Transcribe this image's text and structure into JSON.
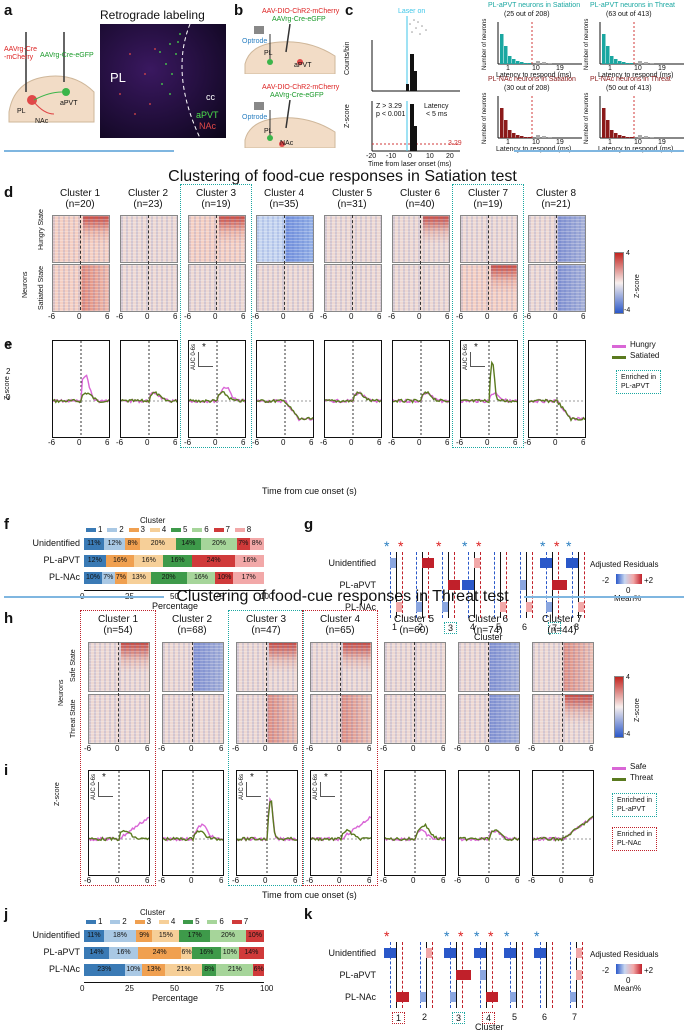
{
  "panels": {
    "a": "a",
    "b": "b",
    "c": "c",
    "d": "d",
    "e": "e",
    "f": "f",
    "g": "g",
    "h": "h",
    "i": "i",
    "j": "j",
    "k": "k"
  },
  "a": {
    "retro_title": "Retrograde labeling",
    "virus_left": "AAVrg-Cre\n-mCherry",
    "virus_right": "AAVrg-Cre-eGFP",
    "pl": "PL",
    "apvt": "aPVT",
    "nac": "NAc",
    "img_pl": "PL",
    "img_cc": "cc",
    "img_apvt": "aPVT",
    "img_nac": "NAc"
  },
  "b": {
    "top_virus1": "AAV-DIO-ChR2-mCherry",
    "top_virus2": "AAVrg-Cre-eGFP",
    "bot_virus1": "AAV-DIO-ChR2-mCherry",
    "bot_virus2": "AAVrg-Cre-eGFP",
    "optrode": "Optrode",
    "pl": "PL",
    "apvt": "aPVT",
    "nac": "NAc"
  },
  "c": {
    "laser_on": "Laser on",
    "ylabel_top": "Counts/bin",
    "ylabel_bot": "Z-score",
    "stat1": "Z > 3.29",
    "stat2": "p < 0.001",
    "lat1": "Latency",
    "lat2": "< 5 ms",
    "thresh": "3.29",
    "xlabel": "Time from laser onset (ms)",
    "xticks": [
      "-20",
      "-10",
      "0",
      "10",
      "20"
    ],
    "hist": [
      {
        "title": "PL-aPVT neurons in Satiation",
        "sub": "(25 out of 208)",
        "color": "#1aa7a1"
      },
      {
        "title": "PL-aPVT neurons in Threat",
        "sub": "(63 out of 413)",
        "color": "#1aa7a1"
      },
      {
        "title": "PL-NAc neurons in Satiation",
        "sub": "(30 out of 208)",
        "color": "#8b1a1a"
      },
      {
        "title": "PL-NAc neurons in Threat",
        "sub": "(50 out of 413)",
        "color": "#8b1a1a"
      }
    ],
    "hist_ylabel": "Number of neurons",
    "hist_xlabel": "Latency to respond (ms)",
    "hist_ticks": [
      "1",
      "10",
      "19"
    ]
  },
  "sat_title": "Clustering of food-cue responses in Satiation test",
  "threat_title": "Clustering of food-cue responses in Threat test",
  "d": {
    "clusters": [
      {
        "name": "Cluster 1",
        "n": "(n=20)"
      },
      {
        "name": "Cluster 2",
        "n": "(n=23)"
      },
      {
        "name": "Cluster 3",
        "n": "(n=19)"
      },
      {
        "name": "Cluster 4",
        "n": "(n=35)"
      },
      {
        "name": "Cluster 5",
        "n": "(n=31)"
      },
      {
        "name": "Cluster 6",
        "n": "(n=40)"
      },
      {
        "name": "Cluster 7",
        "n": "(n=19)"
      },
      {
        "name": "Cluster 8",
        "n": "(n=21)"
      }
    ],
    "row1": "Hungry State",
    "row2": "Satiated State",
    "neurons": "Neurons",
    "cbar_max": "4",
    "cbar_min": "-4",
    "cbar_label": "Z-score",
    "xticks": [
      "-6",
      "0",
      "6"
    ]
  },
  "e": {
    "ylabel": "Z-score",
    "xlabel": "Time from cue onset (s)",
    "yticks": [
      "4",
      "2",
      "0"
    ],
    "xticks": [
      "-6",
      "0",
      "6"
    ],
    "legend1": "Hungry",
    "legend2": "Satiated",
    "enriched": "Enriched in\nPL-aPVT",
    "auc": "AUC 0-6s",
    "star": "*"
  },
  "f": {
    "legend_title": "Cluster",
    "legend": [
      "1",
      "2",
      "3",
      "4",
      "5",
      "6",
      "7",
      "8"
    ],
    "colors": [
      "#3a7ab5",
      "#a9c8e4",
      "#f0a050",
      "#f6cf98",
      "#3e9a4a",
      "#a6d59a",
      "#d03a3a",
      "#f2a8a8"
    ],
    "rows": [
      {
        "name": "Unidentified",
        "vals": [
          11,
          12,
          8,
          20,
          14,
          20,
          7,
          8
        ]
      },
      {
        "name": "PL-aPVT",
        "vals": [
          12,
          0,
          16,
          16,
          16,
          0,
          24,
          16
        ]
      },
      {
        "name": "PL-NAc",
        "vals": [
          10,
          7,
          7,
          13,
          20,
          16,
          10,
          17
        ]
      }
    ],
    "xlabel": "Percentage",
    "xticks": [
      "0",
      "25",
      "50",
      "75",
      "100"
    ]
  },
  "g": {
    "rows": [
      "Unidentified",
      "PL-aPVT",
      "PL-NAc"
    ],
    "xlabel": "Cluster",
    "clusters": [
      "1",
      "2",
      "3",
      "4",
      "5",
      "6",
      "7",
      "8"
    ],
    "legend_title": "Adjusted Residuals",
    "legend_min": "-2",
    "legend_max": "+2",
    "legend_mid": "0",
    "legend_mean": "Mean%"
  },
  "h": {
    "clusters": [
      {
        "name": "Cluster 1",
        "n": "(n=54)"
      },
      {
        "name": "Cluster 2",
        "n": "(n=68)"
      },
      {
        "name": "Cluster 3",
        "n": "(n=47)"
      },
      {
        "name": "Cluster 4",
        "n": "(n=65)"
      },
      {
        "name": "Cluster 5",
        "n": "(n=60)"
      },
      {
        "name": "Cluster 6",
        "n": "(n=74)"
      },
      {
        "name": "Cluster 7",
        "n": "(n=44)"
      }
    ],
    "row1": "Safe State",
    "row2": "Threat State",
    "neurons": "Neurons",
    "cbar_max": "4",
    "cbar_min": "-4",
    "cbar_label": "Z-score",
    "xticks": [
      "-6",
      "0",
      "6"
    ]
  },
  "i": {
    "ylabel": "Z-score",
    "xlabel": "Time from cue onset (s)",
    "yticks": [
      "4",
      "2",
      "0",
      "-2"
    ],
    "legend1": "Safe",
    "legend2": "Threat",
    "enriched1": "Enriched in\nPL-aPVT",
    "enriched2": "Enriched in\nPL-NAc",
    "auc": "AUC 0-6s",
    "star": "*"
  },
  "j": {
    "legend_title": "Cluster",
    "legend": [
      "1",
      "2",
      "3",
      "4",
      "5",
      "6",
      "7"
    ],
    "colors": [
      "#3a7ab5",
      "#a9c8e4",
      "#f0a050",
      "#f6cf98",
      "#3e9a4a",
      "#a6d59a",
      "#d03a3a"
    ],
    "rows": [
      {
        "name": "Unidentified",
        "vals": [
          11,
          18,
          9,
          15,
          17,
          20,
          10
        ]
      },
      {
        "name": "PL-aPVT",
        "vals": [
          14,
          16,
          24,
          6,
          16,
          10,
          14
        ]
      },
      {
        "name": "PL-NAc",
        "vals": [
          23,
          10,
          13,
          21,
          8,
          21,
          6
        ]
      }
    ],
    "xlabel": "Percentage",
    "xticks": [
      "0",
      "25",
      "50",
      "75",
      "100"
    ]
  },
  "k": {
    "rows": [
      "Unidentified",
      "PL-aPVT",
      "PL-NAc"
    ],
    "xlabel": "Cluster",
    "clusters": [
      "1",
      "2",
      "3",
      "4",
      "5",
      "6",
      "7"
    ],
    "legend_title": "Adjusted Residuals",
    "legend_min": "-2",
    "legend_max": "+2",
    "legend_mid": "0",
    "legend_mean": "Mean%"
  },
  "colors": {
    "teal": "#1aa7a1",
    "darkred": "#8b1a1a",
    "pink": "#d966d6",
    "olive": "#5a7a1f",
    "divider": "#7fb6e0"
  }
}
